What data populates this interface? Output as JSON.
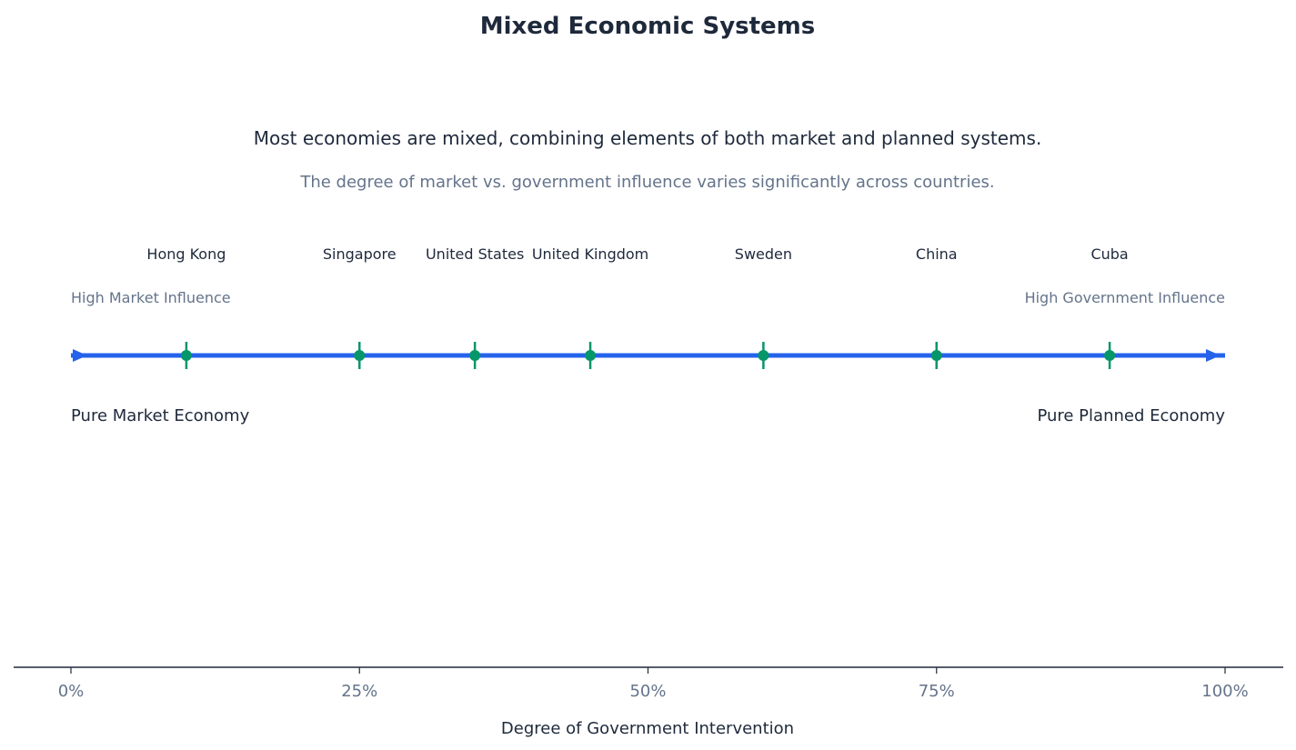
{
  "chart_data": {
    "type": "scatter",
    "title": "Mixed Economic Systems",
    "subtitle": "Most economies are mixed, combining elements of both market and planned systems.",
    "note": "The degree of market vs. government influence varies significantly across countries.",
    "xlabel": "Degree of Government Intervention",
    "xlim": [
      0,
      100
    ],
    "xticks": [
      0,
      25,
      50,
      75,
      100
    ],
    "xtick_labels": [
      "0%",
      "25%",
      "50%",
      "75%",
      "100%"
    ],
    "grid": false,
    "points": [
      {
        "label": "Hong Kong",
        "x": 10
      },
      {
        "label": "Singapore",
        "x": 25
      },
      {
        "label": "United States",
        "x": 35
      },
      {
        "label": "United Kingdom",
        "x": 45
      },
      {
        "label": "Sweden",
        "x": 60
      },
      {
        "label": "China",
        "x": 75
      },
      {
        "label": "Cuba",
        "x": 90
      }
    ],
    "annotations": {
      "left_top": "High Market Influence",
      "right_top": "High Government Influence",
      "left_bottom": "Pure Market Economy",
      "right_bottom": "Pure Planned Economy"
    },
    "colors": {
      "spectrum_line": "#2563eb",
      "markers": "#059669",
      "text": "#1e293b",
      "muted": "#64748b"
    }
  }
}
